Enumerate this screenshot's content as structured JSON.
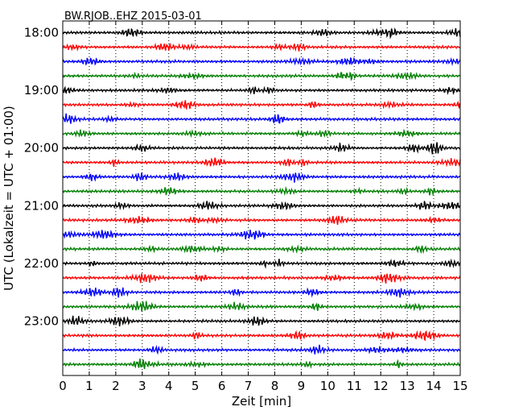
{
  "chart_data": {
    "type": "line",
    "title": "BW.RJOB..EHZ 2015-03-01",
    "xlabel": "Zeit  [min]",
    "ylabel": "UTC (Lokalzeit = UTC + 01:00)",
    "xlim": [
      0,
      15
    ],
    "x_ticks": [
      "0",
      "1",
      "2",
      "3",
      "4",
      "5",
      "6",
      "7",
      "8",
      "9",
      "10",
      "11",
      "12",
      "13",
      "14",
      "15"
    ],
    "y_ticks": [
      {
        "label": "18:00",
        "trace_index": 0
      },
      {
        "label": "19:00",
        "trace_index": 4
      },
      {
        "label": "20:00",
        "trace_index": 8
      },
      {
        "label": "21:00",
        "trace_index": 12
      },
      {
        "label": "22:00",
        "trace_index": 16
      },
      {
        "label": "23:00",
        "trace_index": 20
      }
    ],
    "traces_per_hour": 4,
    "minutes_per_trace": 15,
    "trace_count": 24,
    "trace_colors": [
      "#000000",
      "#ff0000",
      "#0000ff",
      "#008000"
    ],
    "grid": "vertical dotted at each minute",
    "series_note": "Seismic noise traces, each 15 minutes long, stacked from 18:00 to 23:45 UTC"
  }
}
